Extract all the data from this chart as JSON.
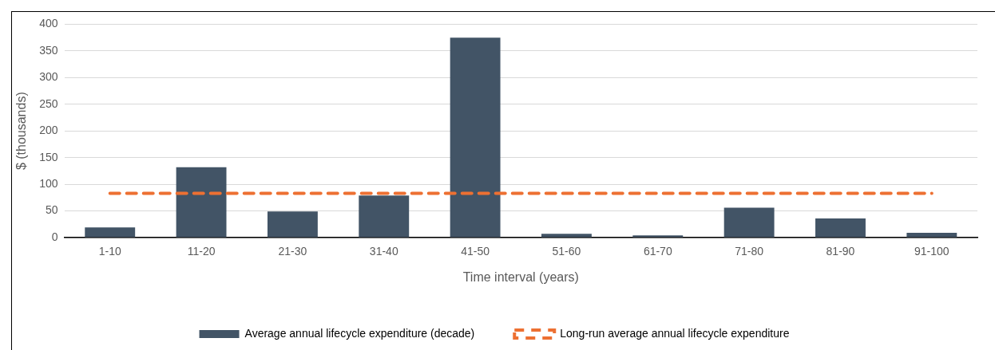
{
  "chart_data": {
    "type": "bar",
    "xlabel": "Time interval (years)",
    "ylabel": "$ (thousands)",
    "categories": [
      "1-10",
      "11-20",
      "21-30",
      "31-40",
      "41-50",
      "51-60",
      "61-70",
      "71-80",
      "81-90",
      "91-100"
    ],
    "series": [
      {
        "name": "Average annual lifecycle expenditure (decade)",
        "color": "#425466",
        "values": [
          19,
          132,
          49,
          79,
          375,
          7,
          4,
          56,
          36,
          9
        ]
      },
      {
        "name": "Long-run average annual lifecycle expenditure",
        "type": "line",
        "line_style": "dashed",
        "marker": "none",
        "color": "#ed7032",
        "values": [
          83,
          83,
          83,
          83,
          83,
          83,
          83,
          83,
          83,
          83
        ]
      }
    ],
    "ylim": [
      0,
      400
    ],
    "yticks": [
      0,
      50,
      100,
      150,
      200,
      250,
      300,
      350,
      400
    ],
    "grid": "y",
    "legend": "bottom"
  }
}
